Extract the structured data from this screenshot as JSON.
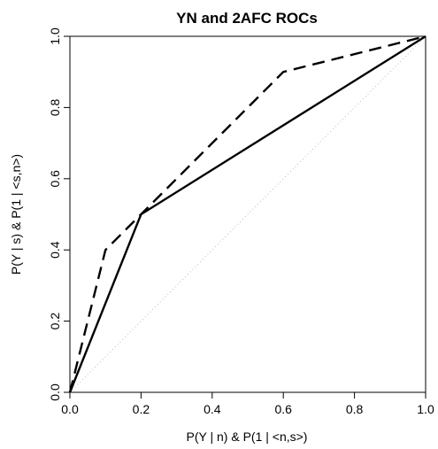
{
  "chart_data": {
    "type": "line",
    "title": "YN and 2AFC ROCs",
    "xlabel": "P(Y | n) & P(1 | <n,s>)",
    "ylabel": "P(Y | s) & P(1 | <s,n>)",
    "xlim": [
      0,
      1
    ],
    "ylim": [
      0,
      1
    ],
    "x_ticks": [
      "0.0",
      "0.2",
      "0.4",
      "0.6",
      "0.8",
      "1.0"
    ],
    "y_ticks": [
      "0.0",
      "0.2",
      "0.4",
      "0.6",
      "0.8",
      "1.0"
    ],
    "grid": false,
    "legend": "none",
    "series": [
      {
        "style": "solid",
        "color": "#000000",
        "x": [
          0.0,
          0.2,
          1.0
        ],
        "y": [
          0.0,
          0.5,
          1.0
        ]
      },
      {
        "style": "dashed",
        "color": "#000000",
        "x": [
          0.0,
          0.1,
          0.2,
          0.6,
          1.0
        ],
        "y": [
          0.0,
          0.4,
          0.5,
          0.9,
          1.0
        ]
      },
      {
        "style": "dotted",
        "color": "#bbbbbb",
        "x": [
          0.0,
          1.0
        ],
        "y": [
          0.0,
          1.0
        ]
      }
    ]
  }
}
